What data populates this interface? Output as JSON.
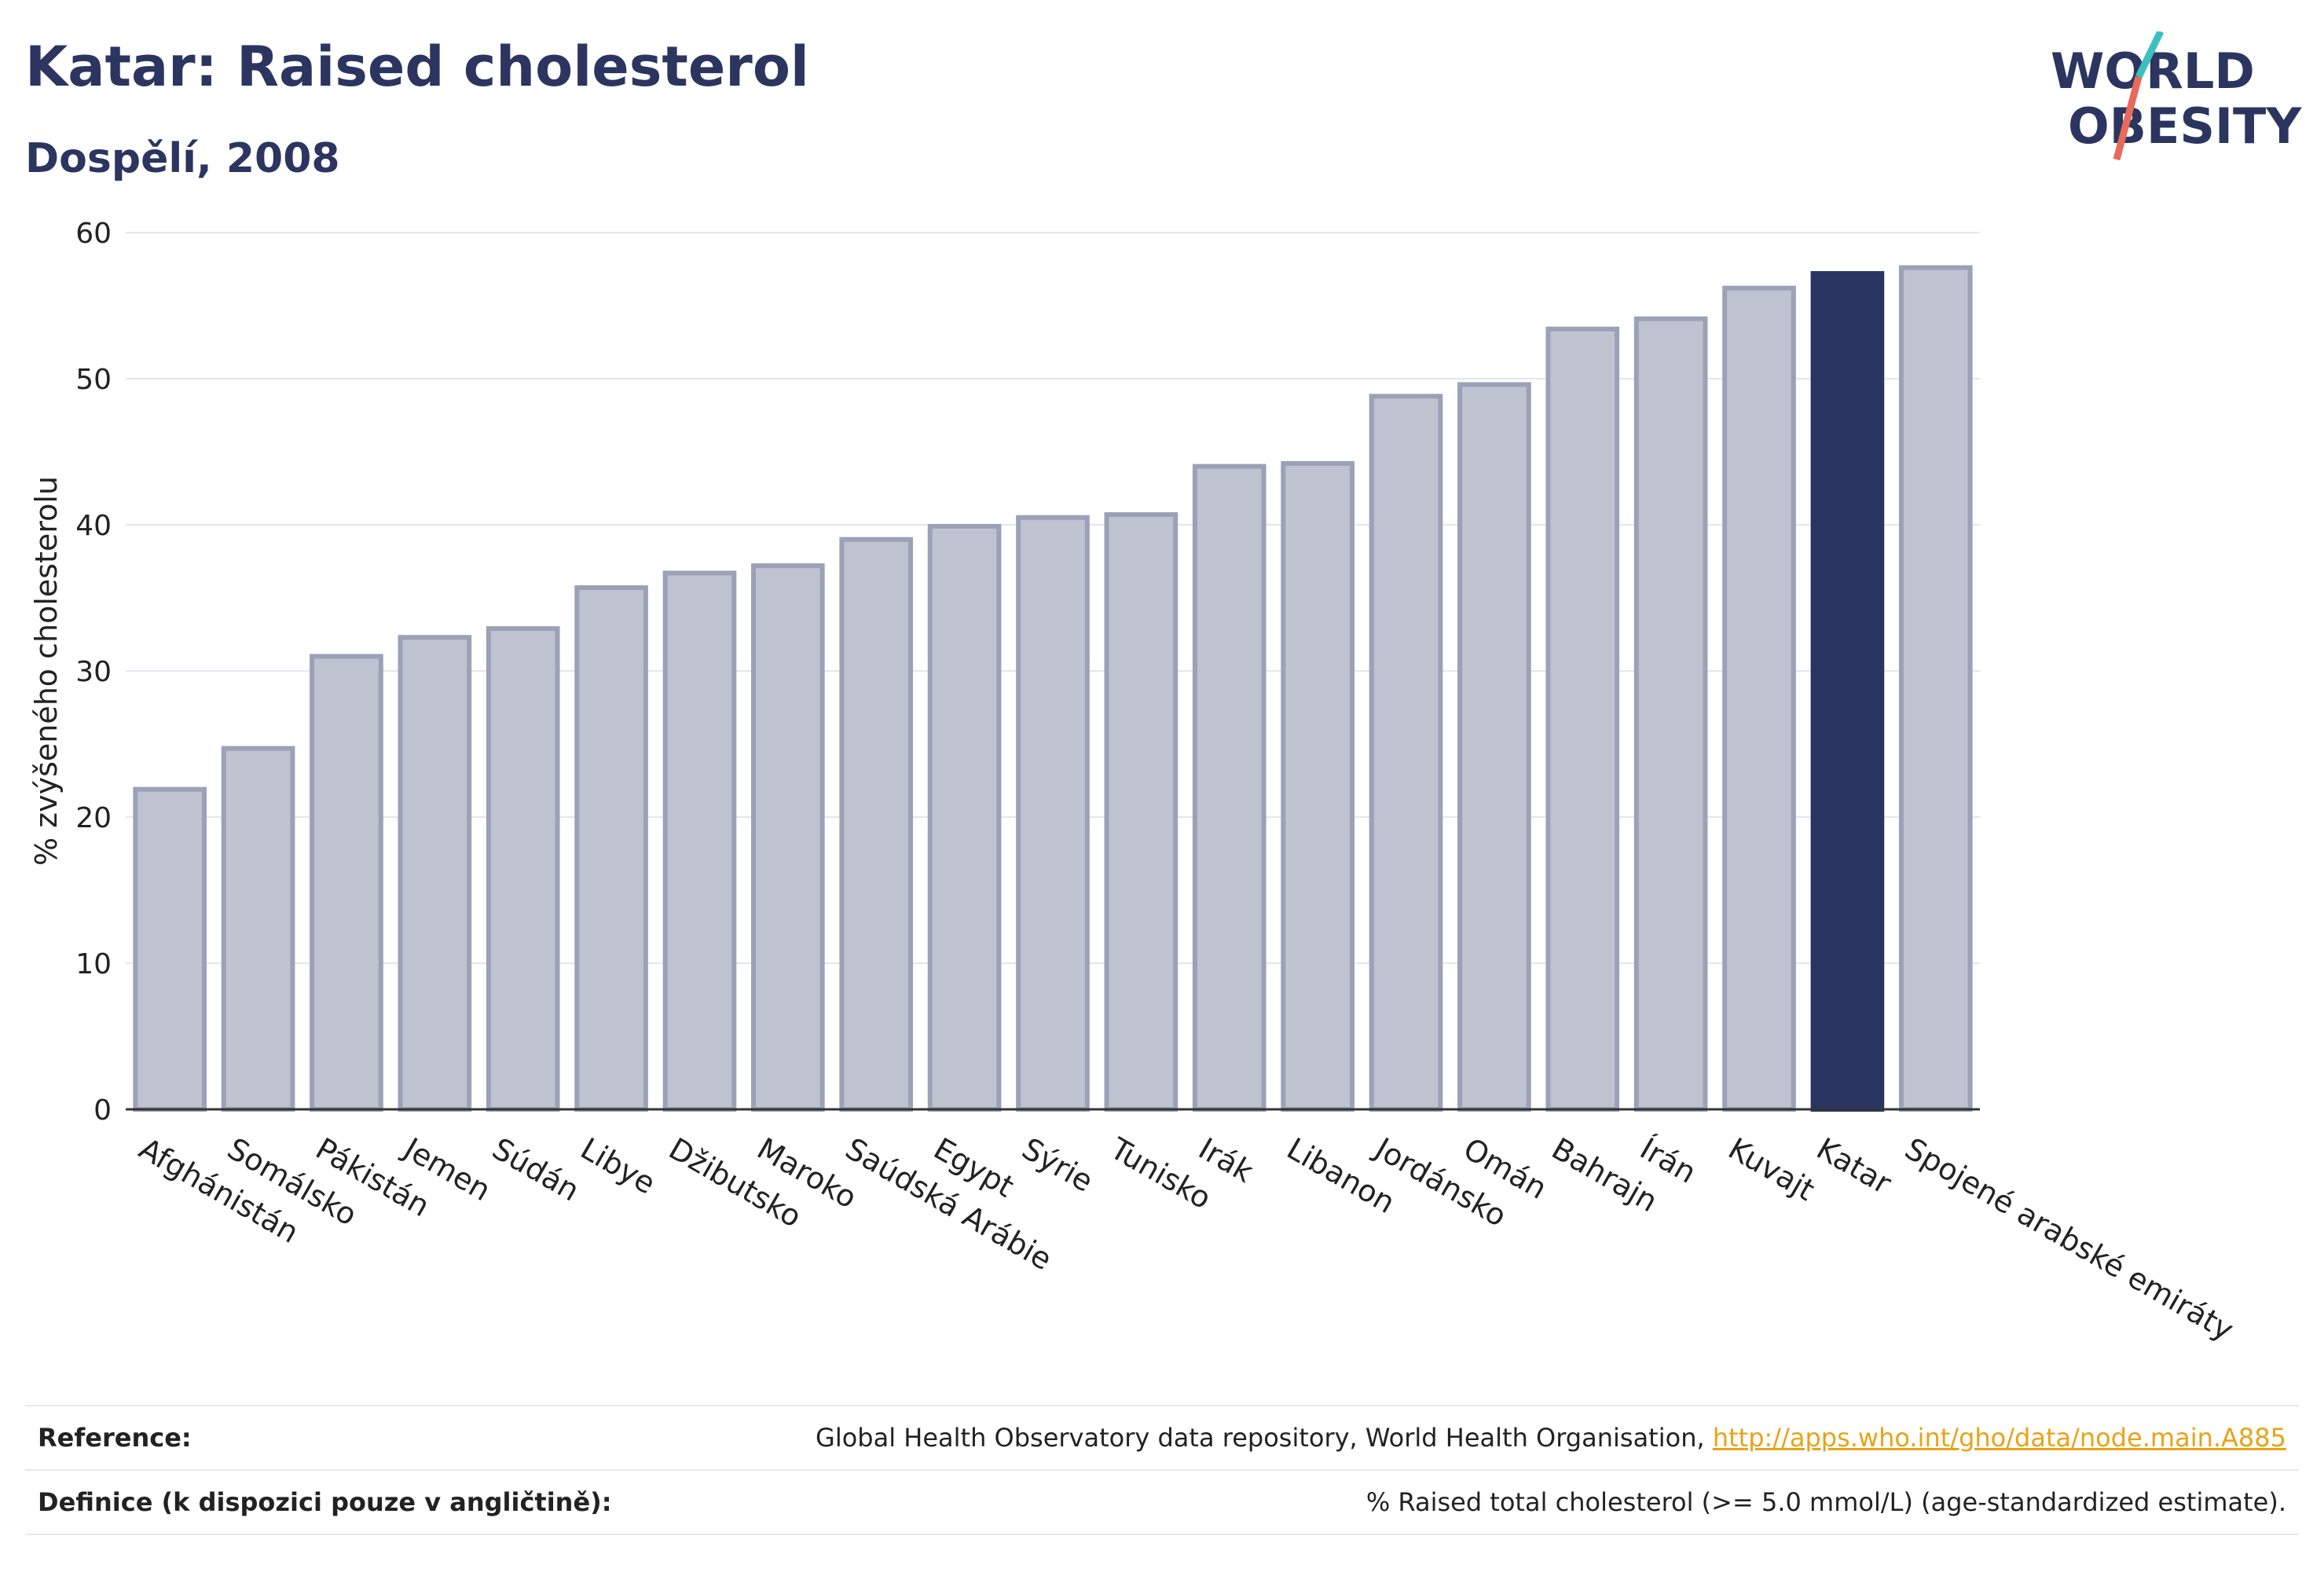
{
  "header": {
    "title": "Katar: Raised cholesterol",
    "subtitle": "Dospělí, 2008"
  },
  "logo": {
    "line1": "WORLD",
    "line2": "OBESITY"
  },
  "colors": {
    "highlight": "#2a3561",
    "bar": "#bfc3d0",
    "bar_border": "#9ba1b7",
    "text": "#2b3560",
    "link": "#e8a317"
  },
  "chart_data": {
    "type": "bar",
    "categories": [
      "Afghánistán",
      "Somálsko",
      "Pákistán",
      "Jemen",
      "Súdán",
      "Libye",
      "Džibutsko",
      "Maroko",
      "Saúdská Arábie",
      "Egypt",
      "Sýrie",
      "Tunisko",
      "Irák",
      "Libanon",
      "Jordánsko",
      "Omán",
      "Bahrajn",
      "Írán",
      "Kuvajt",
      "Katar",
      "Spojené arabské emiráty"
    ],
    "values": [
      21.9,
      24.7,
      31.0,
      32.3,
      32.9,
      35.7,
      36.7,
      37.2,
      39.0,
      39.9,
      40.5,
      40.7,
      44.0,
      44.2,
      48.8,
      49.6,
      53.4,
      54.1,
      56.2,
      57.2,
      57.6
    ],
    "highlight": "Katar",
    "ylabel": "% zvýšeného cholesterolu",
    "xlabel": "",
    "ylim": [
      0,
      60
    ],
    "yticks": [
      0,
      10,
      20,
      30,
      40,
      50,
      60
    ],
    "grid": true
  },
  "footer": {
    "reference_label": "Reference:",
    "reference_text": "Global Health Observatory data repository, World Health Organisation, ",
    "reference_link": "http://apps.who.int/gho/data/node.main.A885",
    "definition_label": "Definice (k dispozici pouze v angličtině):",
    "definition_text": "% Raised total cholesterol (>= 5.0 mmol/L) (age-standardized estimate)."
  }
}
